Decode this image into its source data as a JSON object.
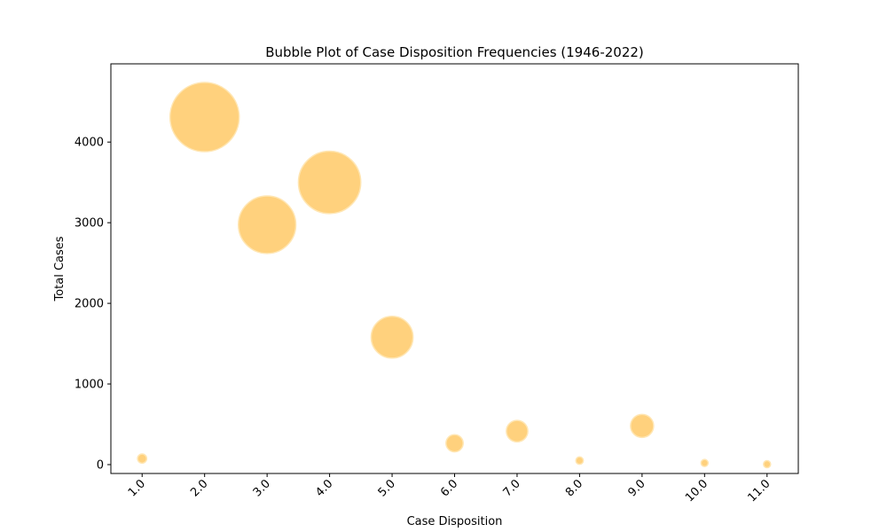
{
  "chart_data": {
    "type": "scatter",
    "variant": "bubble",
    "title": "Bubble Plot of Case Disposition Frequencies (1946-2022)",
    "xlabel": "Case Disposition",
    "ylabel": "Total Cases",
    "x": [
      1.0,
      2.0,
      3.0,
      4.0,
      5.0,
      6.0,
      7.0,
      8.0,
      9.0,
      10.0,
      11.0
    ],
    "y": [
      75,
      4310,
      2975,
      3500,
      1580,
      265,
      415,
      50,
      480,
      20,
      5
    ],
    "x_tick_labels": [
      "1.0",
      "2.0",
      "3.0",
      "4.0",
      "5.0",
      "6.0",
      "7.0",
      "8.0",
      "9.0",
      "10.0",
      "11.0"
    ],
    "y_ticks": [
      0,
      1000,
      2000,
      3000,
      4000
    ],
    "y_tick_labels": [
      "0",
      "1000",
      "2000",
      "3000",
      "4000"
    ],
    "xlim": [
      0.5,
      11.5
    ],
    "ylim": [
      -110,
      4970
    ],
    "bubble_size_encodes": "y",
    "grid": false,
    "colors": {
      "bubble_fill": "#ffc966",
      "bubble_edge": "#ffe6b3"
    }
  }
}
